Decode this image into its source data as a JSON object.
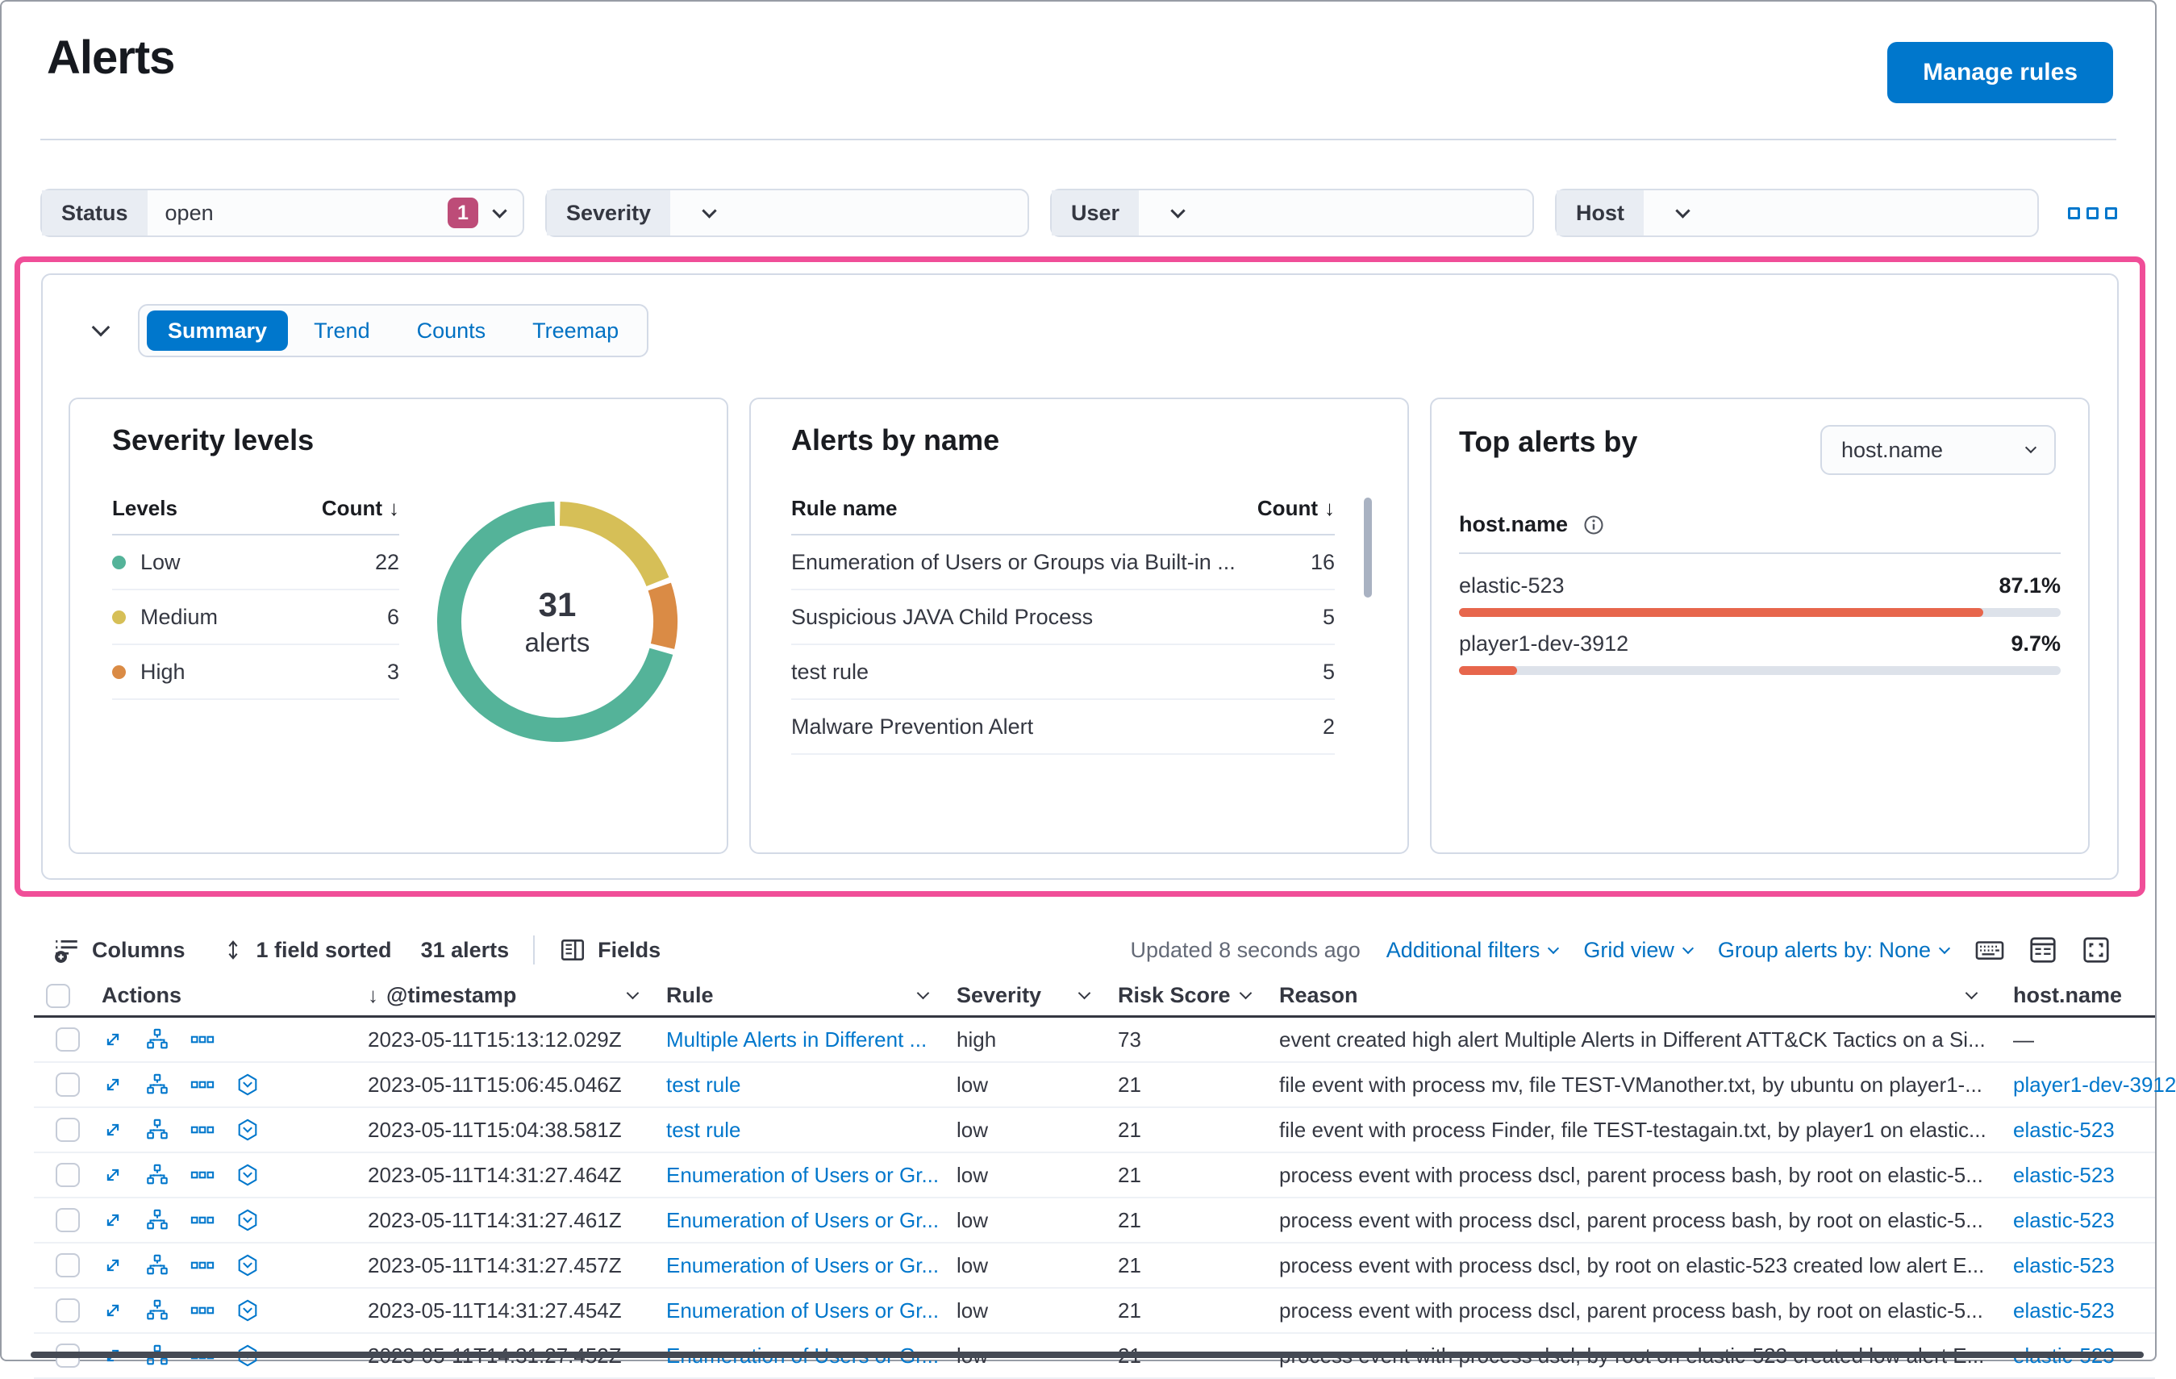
{
  "header": {
    "title": "Alerts",
    "manage_rules": "Manage rules"
  },
  "filters": {
    "groups": [
      {
        "label": "Status",
        "value": "open",
        "badge": "1"
      },
      {
        "label": "Severity",
        "value": "",
        "badge": null
      },
      {
        "label": "User",
        "value": "",
        "badge": null
      },
      {
        "label": "Host",
        "value": "",
        "badge": null
      }
    ]
  },
  "summary_panel": {
    "tabs": [
      {
        "label": "Summary",
        "active": true
      },
      {
        "label": "Trend",
        "active": false
      },
      {
        "label": "Counts",
        "active": false
      },
      {
        "label": "Treemap",
        "active": false
      }
    ],
    "severity_card": {
      "title": "Severity levels",
      "col_levels": "Levels",
      "col_count": "Count",
      "rows": [
        {
          "label": "Low",
          "count": "22",
          "color": "#54B399"
        },
        {
          "label": "Medium",
          "count": "6",
          "color": "#D6BF57"
        },
        {
          "label": "High",
          "count": "3",
          "color": "#DA8B45"
        }
      ],
      "donut_total": "31",
      "donut_unit": "alerts"
    },
    "alerts_by_name_card": {
      "title": "Alerts by name",
      "col_rule": "Rule name",
      "col_count": "Count",
      "rows": [
        {
          "name": "Enumeration of Users or Groups via Built-in ...",
          "count": "16"
        },
        {
          "name": "Suspicious JAVA Child Process",
          "count": "5"
        },
        {
          "name": "test rule",
          "count": "5"
        },
        {
          "name": "Malware Prevention Alert",
          "count": "2"
        }
      ]
    },
    "top_alerts_card": {
      "title": "Top alerts by",
      "select_value": "host.name",
      "field": "host.name",
      "rows": [
        {
          "name": "elastic-523",
          "pct_label": "87.1%",
          "pct": 87.1
        },
        {
          "name": "player1-dev-3912",
          "pct_label": "9.7%",
          "pct": 9.7
        }
      ]
    }
  },
  "chart_data": [
    {
      "type": "pie",
      "donut": true,
      "title": "Severity levels",
      "categories": [
        "Medium",
        "High",
        "Low"
      ],
      "values": [
        6,
        3,
        22
      ],
      "colors": [
        "#D6BF57",
        "#DA8B45",
        "#54B399"
      ],
      "center_value": 31,
      "center_label": "alerts",
      "legend": [
        {
          "label": "Low",
          "value": 22,
          "color": "#54B399"
        },
        {
          "label": "Medium",
          "value": 6,
          "color": "#D6BF57"
        },
        {
          "label": "High",
          "value": 3,
          "color": "#DA8B45"
        }
      ]
    },
    {
      "type": "bar",
      "orientation": "horizontal",
      "title": "Top alerts by host.name",
      "categories": [
        "elastic-523",
        "player1-dev-3912"
      ],
      "values": [
        87.1,
        9.7
      ],
      "unit": "%",
      "xlim": [
        0,
        100
      ],
      "color": "#E7664C"
    }
  ],
  "grid_toolbar": {
    "columns": "Columns",
    "sorted": "1 field sorted",
    "alert_count": "31 alerts",
    "fields": "Fields",
    "updated": "Updated 8 seconds ago",
    "additional_filters": "Additional filters",
    "grid_view": "Grid view",
    "group_by": "Group alerts by: None"
  },
  "grid": {
    "headers": {
      "actions": "Actions",
      "timestamp": "@timestamp",
      "rule": "Rule",
      "severity": "Severity",
      "risk": "Risk Score",
      "reason": "Reason",
      "host": "host.name"
    },
    "rows": [
      {
        "timestamp": "2023-05-11T15:13:12.029Z",
        "rule": "Multiple Alerts in Different ...",
        "severity": "high",
        "risk": "73",
        "reason": "event created high alert Multiple Alerts in Different ATT&CK Tactics on a Si...",
        "host": "—",
        "host_link": false,
        "session": false
      },
      {
        "timestamp": "2023-05-11T15:06:45.046Z",
        "rule": "test rule",
        "severity": "low",
        "risk": "21",
        "reason": "file event with process mv, file TEST-VManother.txt, by ubuntu on player1-...",
        "host": "player1-dev-3912",
        "host_link": true,
        "session": true
      },
      {
        "timestamp": "2023-05-11T15:04:38.581Z",
        "rule": "test rule",
        "severity": "low",
        "risk": "21",
        "reason": "file event with process Finder, file TEST-testagain.txt, by player1 on elastic...",
        "host": "elastic-523",
        "host_link": true,
        "session": true
      },
      {
        "timestamp": "2023-05-11T14:31:27.464Z",
        "rule": "Enumeration of Users or Gr...",
        "severity": "low",
        "risk": "21",
        "reason": "process event with process dscl, parent process bash, by root on elastic-5...",
        "host": "elastic-523",
        "host_link": true,
        "session": true
      },
      {
        "timestamp": "2023-05-11T14:31:27.461Z",
        "rule": "Enumeration of Users or Gr...",
        "severity": "low",
        "risk": "21",
        "reason": "process event with process dscl, parent process bash, by root on elastic-5...",
        "host": "elastic-523",
        "host_link": true,
        "session": true
      },
      {
        "timestamp": "2023-05-11T14:31:27.457Z",
        "rule": "Enumeration of Users or Gr...",
        "severity": "low",
        "risk": "21",
        "reason": "process event with process dscl, by root on elastic-523 created low alert E...",
        "host": "elastic-523",
        "host_link": true,
        "session": true
      },
      {
        "timestamp": "2023-05-11T14:31:27.454Z",
        "rule": "Enumeration of Users or Gr...",
        "severity": "low",
        "risk": "21",
        "reason": "process event with process dscl, parent process bash, by root on elastic-5...",
        "host": "elastic-523",
        "host_link": true,
        "session": true
      },
      {
        "timestamp": "2023-05-11T14:31:27.452Z",
        "rule": "Enumeration of Users or Gr...",
        "severity": "low",
        "risk": "21",
        "reason": "process event with process dscl, by root on elastic-523 created low alert E...",
        "host": "elastic-523",
        "host_link": true,
        "session": true
      }
    ]
  },
  "colors": {
    "primary": "#0077CC",
    "accent_badge": "#BD4C78",
    "highlight_border": "#F04E98",
    "bar_fill": "#E7664C",
    "severity_low": "#54B399",
    "severity_medium": "#D6BF57",
    "severity_high": "#DA8B45"
  }
}
